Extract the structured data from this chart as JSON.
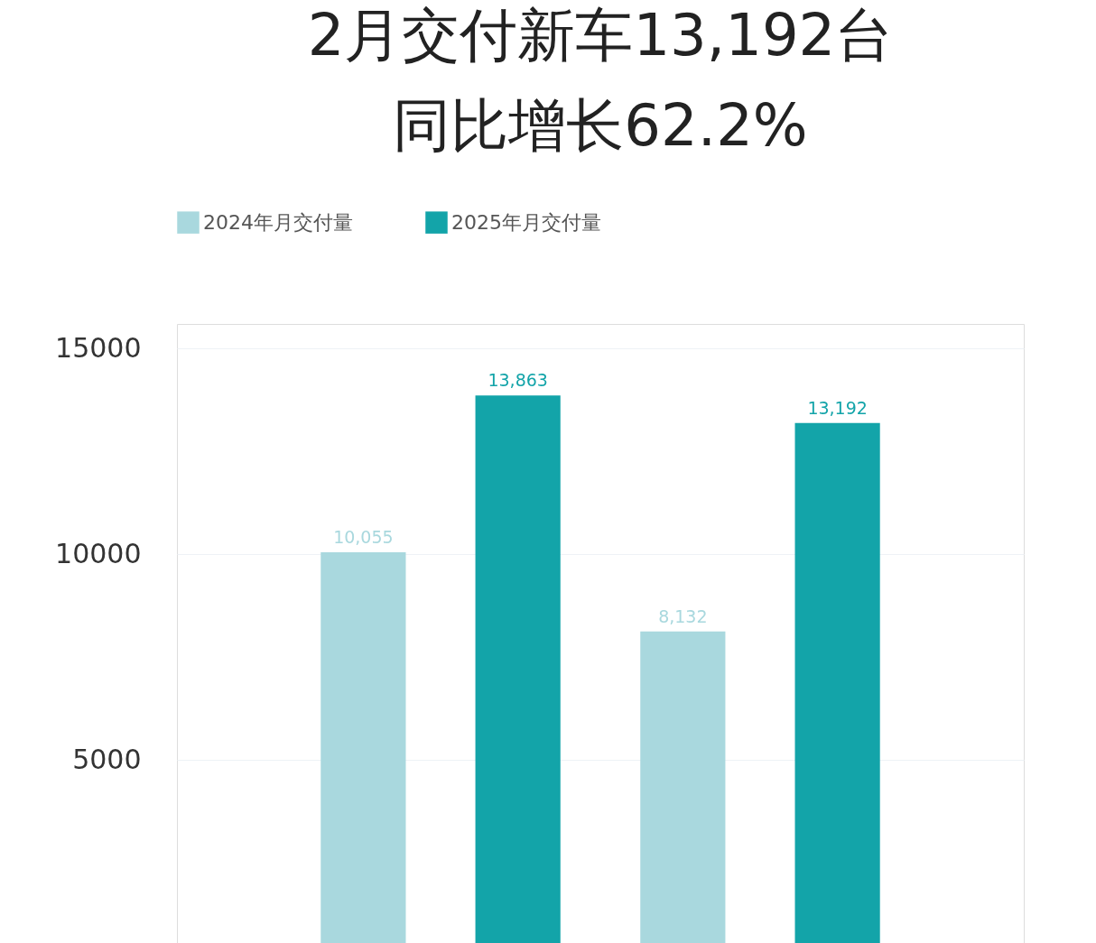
{
  "chart_data": {
    "type": "bar",
    "title": [
      "2月交付新车13,192台",
      "同比增长62.2%"
    ],
    "categories": [
      null,
      null
    ],
    "series": [
      {
        "name": "2024年月交付量",
        "color": "#a9d8de",
        "values": [
          10055,
          8132
        ],
        "value_labels": [
          "10,055",
          "8,132"
        ]
      },
      {
        "name": "2025年月交付量",
        "color": "#13a4a9",
        "values": [
          13863,
          13192
        ],
        "value_labels": [
          "13,863",
          "13,192"
        ]
      }
    ],
    "ylim": [
      560,
      15600
    ],
    "yticks": [
      5000,
      10000,
      15000
    ],
    "grid": "y",
    "legend": "top left",
    "tick_labels": "y"
  }
}
